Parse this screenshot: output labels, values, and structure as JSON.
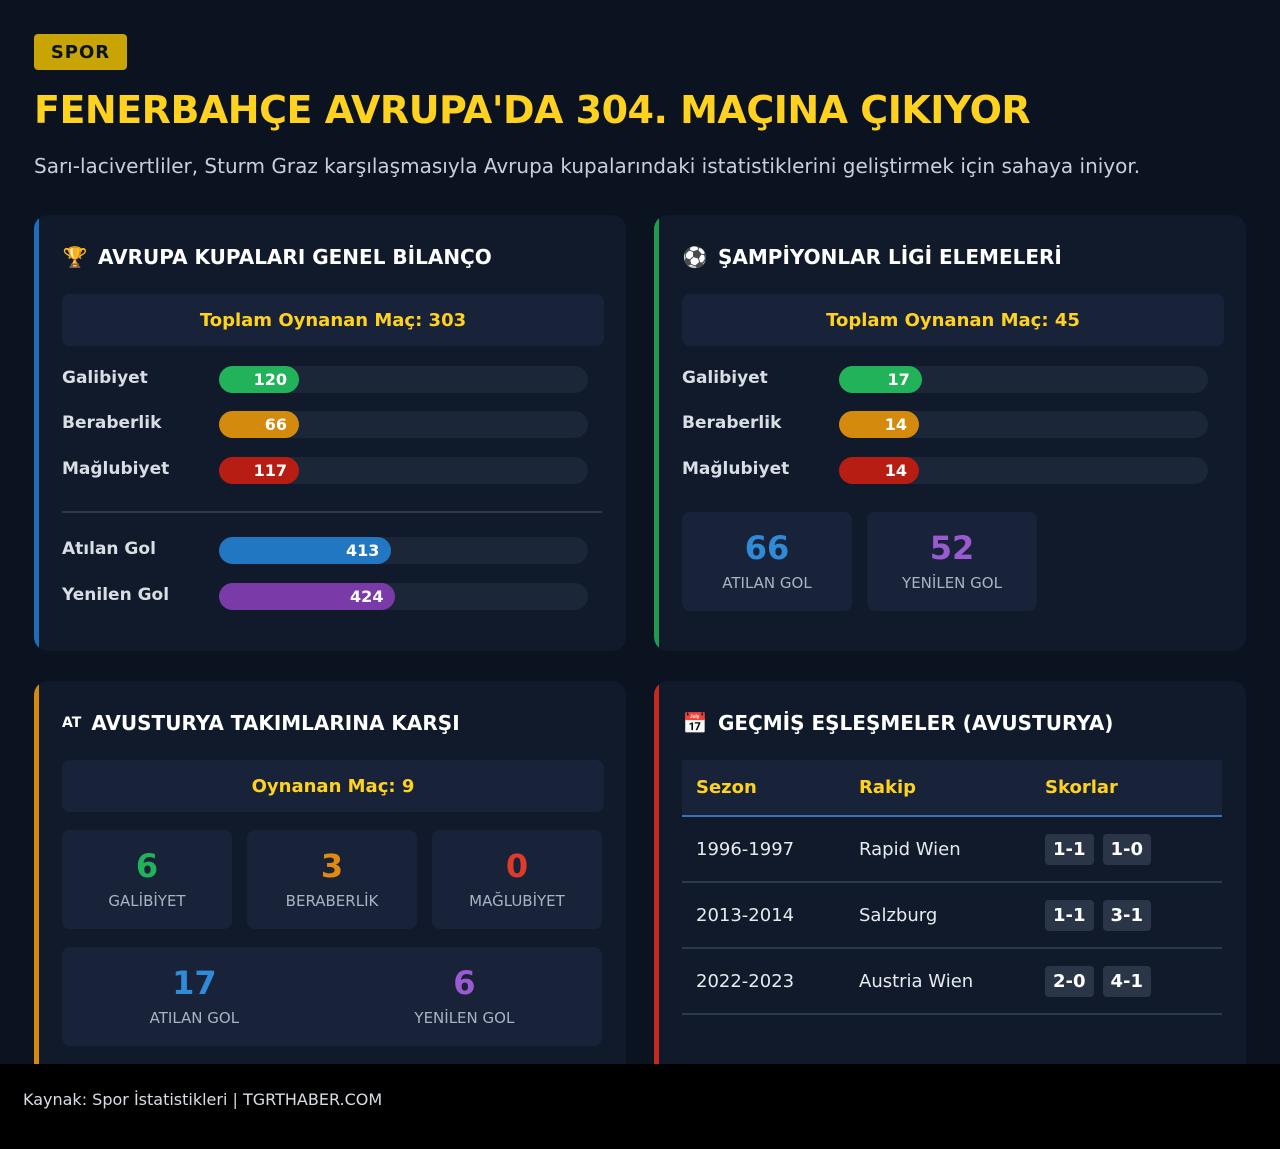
{
  "header": {
    "tag": "SPOR",
    "title": "FENERBAHÇE AVRUPA'DA 304. MAÇINA ÇIKIYOR",
    "subtitle": "Sarı-lacivertliler, Sturm Graz karşılaşmasıyla Avrupa kupalarındaki istatistiklerini geliştirmek için sahaya iniyor."
  },
  "colors": {
    "win": "#22b35a",
    "draw": "#d48a0c",
    "loss": "#b81d13",
    "scored": "#2277c2",
    "conceded": "#7a3aa8",
    "accent_blue": "#1f6fb8",
    "accent_green": "#1f9a4f",
    "accent_orange": "#d48a0c",
    "accent_red": "#c62a1f",
    "gold": "#ffd21f"
  },
  "card_overall": {
    "icon": "trophy-icon",
    "icon_glyph": "🏆",
    "title": "AVRUPA KUPALARI GENEL BİLANÇO",
    "total_label": "Toplam Oynanan Maç: 303",
    "divider": true
  },
  "card_cl": {
    "icon": "globe-icon",
    "icon_glyph": "⚽",
    "title": "ŞAMPİYONLAR LİGİ ELEMELERİ",
    "total_label": "Toplam Oynanan Maç: 45",
    "boxes": [
      {
        "value": "66",
        "label": "ATILAN GOL",
        "color": "#2f8ad8"
      },
      {
        "value": "52",
        "label": "YENİLEN GOL",
        "color": "#9a5bd0"
      }
    ]
  },
  "card_austria": {
    "icon": "flag-at-icon",
    "icon_glyph": "AT",
    "title": "AVUSTURYA TAKIMLARINA KARŞI",
    "total_label": "Oynanan Maç: 9",
    "boxes": [
      {
        "value": "6",
        "label": "GALİBİYET",
        "color": "#22b35a"
      },
      {
        "value": "3",
        "label": "BERABERLİK",
        "color": "#e08a10"
      },
      {
        "value": "0",
        "label": "MAĞLUBİYET",
        "color": "#e03a2a"
      }
    ],
    "goals": [
      {
        "value": "17",
        "label": "ATILAN GOL",
        "color": "#2f8ad8"
      },
      {
        "value": "6",
        "label": "YENİLEN GOL",
        "color": "#9a5bd0"
      }
    ]
  },
  "card_history": {
    "icon": "calendar-icon",
    "icon_glyph": "📅",
    "title": "GEÇMİŞ EŞLEŞMELER (AVUSTURYA)",
    "columns": [
      "Sezon",
      "Rakip",
      "Skorlar"
    ],
    "rows": [
      {
        "season": "1996-1997",
        "opponent": "Rapid Wien",
        "scores": [
          "1-1",
          "1-0"
        ]
      },
      {
        "season": "2013-2014",
        "opponent": "Salzburg",
        "scores": [
          "1-1",
          "3-1"
        ]
      },
      {
        "season": "2022-2023",
        "opponent": "Austria Wien",
        "scores": [
          "2-0",
          "4-1"
        ]
      }
    ]
  },
  "chart_data": [
    {
      "type": "bar",
      "title": "AVRUPA KUPALARI GENEL BİLANÇO",
      "orientation": "horizontal",
      "scale_max": 1000,
      "categories": [
        "Galibiyet",
        "Beraberlik",
        "Mağlubiyet",
        "Atılan Gol",
        "Yenilen Gol"
      ],
      "values": [
        120,
        66,
        117,
        413,
        424
      ],
      "colors": [
        "#22b35a",
        "#d48a0c",
        "#b81d13",
        "#2277c2",
        "#7a3aa8"
      ]
    },
    {
      "type": "bar",
      "title": "ŞAMPİYONLAR LİGİ ELEMELERİ",
      "orientation": "horizontal",
      "scale_max": 100,
      "categories": [
        "Galibiyet",
        "Beraberlik",
        "Mağlubiyet"
      ],
      "values": [
        17,
        14,
        14
      ],
      "colors": [
        "#22b35a",
        "#d48a0c",
        "#b81d13"
      ]
    }
  ],
  "footer": {
    "text": "Kaynak: Spor İstatistikleri | TGRTHABER.COM"
  }
}
